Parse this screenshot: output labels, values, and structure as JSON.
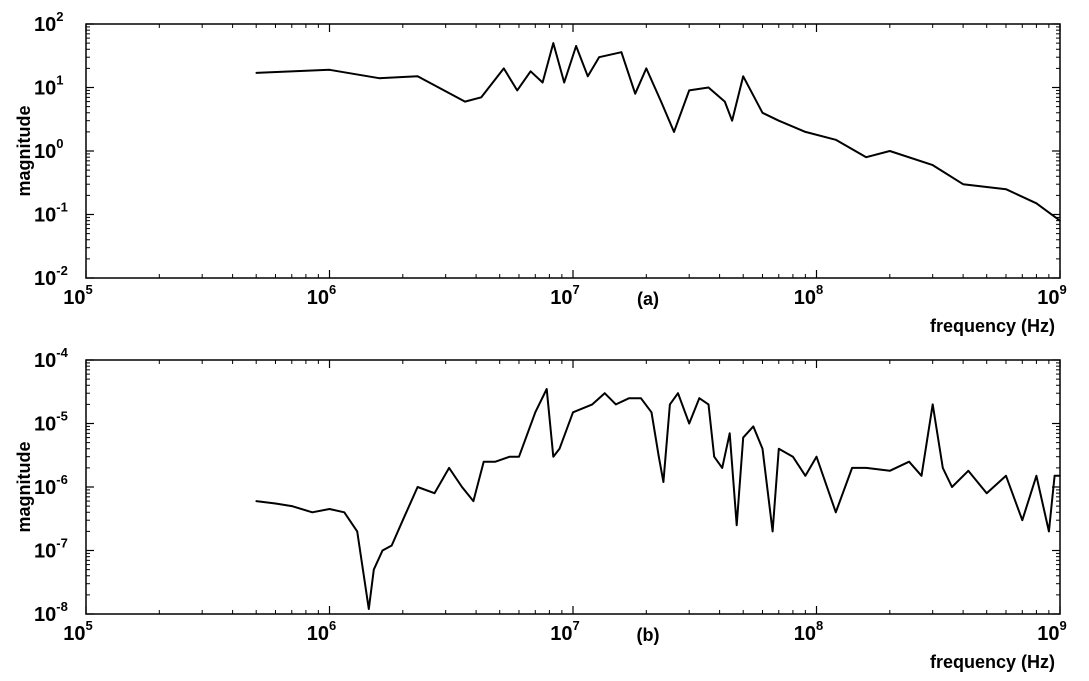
{
  "chart_data": [
    {
      "type": "line",
      "panel_label": "(a)",
      "xlabel": "frequency (Hz)",
      "ylabel": "magnitude",
      "x_scale": "log",
      "y_scale": "log",
      "xlim": [
        100000,
        1000000000
      ],
      "ylim": [
        0.01,
        100
      ],
      "x_ticks": [
        {
          "base": "10",
          "exp": "5"
        },
        {
          "base": "10",
          "exp": "6"
        },
        {
          "base": "10",
          "exp": "7"
        },
        {
          "base": "10",
          "exp": "8"
        },
        {
          "base": "10",
          "exp": "9"
        }
      ],
      "y_ticks": [
        {
          "base": "10",
          "exp": "-2"
        },
        {
          "base": "10",
          "exp": "-1"
        },
        {
          "base": "10",
          "exp": "0"
        },
        {
          "base": "10",
          "exp": "1"
        },
        {
          "base": "10",
          "exp": "2"
        }
      ],
      "grid": false,
      "series": [
        {
          "color": "#000000",
          "x": [
            500000,
            1000000,
            1600000,
            2300000,
            3600000,
            4200000,
            5200000,
            5900000,
            6700000,
            7500000,
            8300000,
            9200000,
            10300000,
            11500000,
            12800000,
            15800000,
            18000000,
            20000000,
            23000000,
            26000000,
            30000000,
            36000000,
            42000000,
            45000000,
            50000000,
            60000000,
            70000000,
            90000000,
            120000000,
            160000000,
            200000000,
            300000000,
            400000000,
            600000000,
            800000000,
            1000000000
          ],
          "y": [
            17,
            19,
            14,
            15,
            6,
            7,
            20,
            9,
            18,
            12,
            50,
            12,
            45,
            15,
            30,
            36,
            8,
            20,
            6,
            2,
            9,
            10,
            6,
            3,
            15,
            4,
            3,
            2,
            1.5,
            0.8,
            1.0,
            0.6,
            0.3,
            0.25,
            0.15,
            0.08
          ]
        }
      ]
    },
    {
      "type": "line",
      "panel_label": "(b)",
      "xlabel": "frequency (Hz)",
      "ylabel": "magnitude",
      "x_scale": "log",
      "y_scale": "log",
      "xlim": [
        100000,
        1000000000
      ],
      "ylim": [
        1e-08,
        0.0001
      ],
      "x_ticks": [
        {
          "base": "10",
          "exp": "5"
        },
        {
          "base": "10",
          "exp": "6"
        },
        {
          "base": "10",
          "exp": "7"
        },
        {
          "base": "10",
          "exp": "8"
        },
        {
          "base": "10",
          "exp": "9"
        }
      ],
      "y_ticks": [
        {
          "base": "10",
          "exp": "-8"
        },
        {
          "base": "10",
          "exp": "-7"
        },
        {
          "base": "10",
          "exp": "-6"
        },
        {
          "base": "10",
          "exp": "-5"
        },
        {
          "base": "10",
          "exp": "-4"
        }
      ],
      "grid": false,
      "series": [
        {
          "color": "#000000",
          "x": [
            500000,
            600000,
            700000,
            850000,
            1000000,
            1150000,
            1300000,
            1450000,
            1520000,
            1650000,
            1800000,
            2000000,
            2300000,
            2700000,
            3100000,
            3500000,
            3900000,
            4300000,
            4800000,
            5500000,
            6000000,
            7000000,
            7800000,
            8300000,
            8800000,
            10000000,
            12000000,
            13500000,
            15000000,
            17000000,
            19000000,
            21000000,
            22500000,
            23500000,
            25000000,
            27000000,
            30000000,
            33000000,
            36000000,
            38000000,
            41000000,
            44000000,
            47000000,
            50000000,
            55000000,
            60000000,
            66000000,
            70000000,
            80000000,
            90000000,
            100000000,
            120000000,
            140000000,
            160000000,
            200000000,
            240000000,
            270000000,
            300000000,
            330000000,
            360000000,
            420000000,
            500000000,
            600000000,
            700000000,
            800000000,
            900000000,
            950000000,
            1000000000
          ],
          "y": [
            6e-07,
            5.5e-07,
            5e-07,
            4e-07,
            4.5e-07,
            4e-07,
            2e-07,
            1.2e-08,
            5e-08,
            1e-07,
            1.2e-07,
            3e-07,
            1e-06,
            8e-07,
            2e-06,
            1e-06,
            6e-07,
            2.5e-06,
            2.5e-06,
            3e-06,
            3e-06,
            1.5e-05,
            3.5e-05,
            3e-06,
            4e-06,
            1.5e-05,
            2e-05,
            3e-05,
            2e-05,
            2.5e-05,
            2.5e-05,
            1.5e-05,
            3e-06,
            1.2e-06,
            2e-05,
            3e-05,
            1e-05,
            2.5e-05,
            2e-05,
            3e-06,
            2e-06,
            7e-06,
            2.5e-07,
            6e-06,
            9e-06,
            4e-06,
            2e-07,
            4e-06,
            3e-06,
            1.5e-06,
            3e-06,
            4e-07,
            2e-06,
            2e-06,
            1.8e-06,
            2.5e-06,
            1.5e-06,
            2e-05,
            2e-06,
            1e-06,
            1.8e-06,
            8e-07,
            1.5e-06,
            3e-07,
            1.5e-06,
            2e-07,
            1.5e-06,
            1.5e-06
          ]
        }
      ]
    }
  ]
}
